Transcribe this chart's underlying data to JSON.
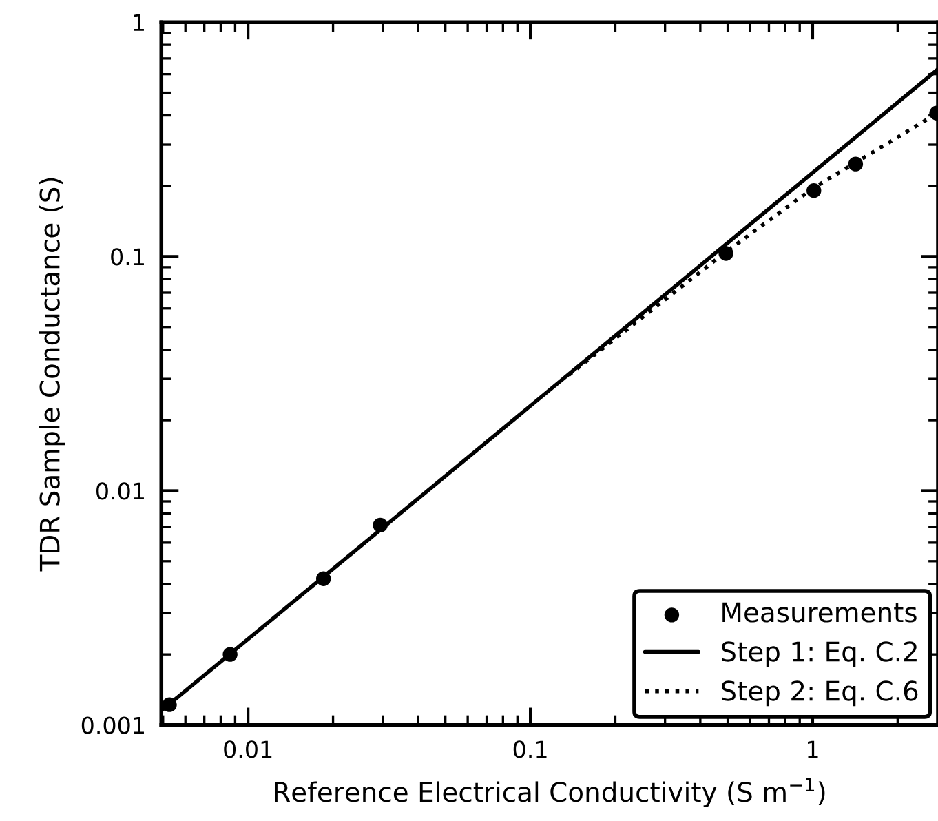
{
  "chart_data": {
    "type": "scatter",
    "xlabel": "Reference Electrical Conductivity (S m$^{−1}$)",
    "ylabel": "TDR Sample Conductance (S)",
    "log": "xy",
    "xlim": [
      0.00493,
      2.78
    ],
    "ylim": [
      0.001,
      1
    ],
    "xticks": [
      0.01,
      0.1,
      1
    ],
    "yticks": [
      0.001,
      0.01,
      0.1,
      1
    ],
    "grid": false,
    "legend": "bottom right",
    "series": [
      {
        "name": "Measurements",
        "color": "#000000",
        "marker": "circle",
        "x": [
          0.00527,
          0.00864,
          0.0185,
          0.0294,
          0.493,
          1.01,
          1.42,
          2.75
        ],
        "values": [
          0.00122,
          0.002,
          0.00421,
          0.00713,
          0.103,
          0.191,
          0.248,
          0.409
        ]
      },
      {
        "name": "Step 1: Eq. C.2",
        "type": "line",
        "color": "#000000",
        "line_style": "solid",
        "x": [
          0.00493,
          2.78
        ],
        "values": [
          0.00115,
          0.63
        ]
      },
      {
        "name": "Step 2: Eq. C.6",
        "type": "line",
        "color": "#000000",
        "line_style": "dotted",
        "x": [
          0.137,
          0.49,
          1.0,
          2.78
        ],
        "values": [
          0.0312,
          0.104,
          0.195,
          0.41
        ]
      }
    ]
  }
}
